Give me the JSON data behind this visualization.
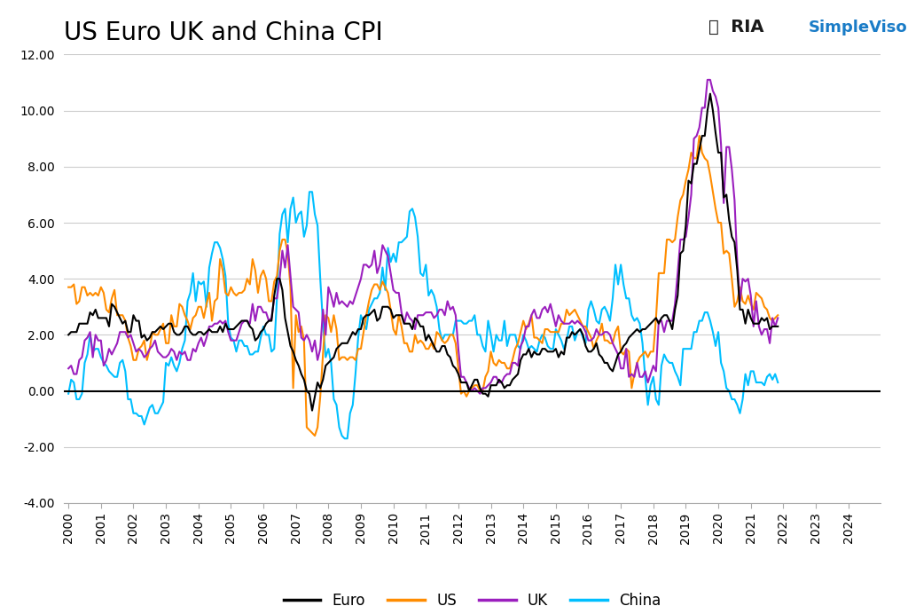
{
  "title": "US Euro UK and China CPI",
  "title_fontsize": 20,
  "colors": {
    "Euro": "#000000",
    "US": "#FF8C00",
    "UK": "#9B1FBE",
    "China": "#00BFFF"
  },
  "ylim": [
    -4.0,
    12.0
  ],
  "yticks": [
    -4.0,
    -2.0,
    0.0,
    2.0,
    4.0,
    6.0,
    8.0,
    10.0,
    12.0
  ],
  "background_color": "#ffffff",
  "grid_color": "#cccccc",
  "euro_monthly": [
    2.0,
    2.1,
    2.1,
    2.1,
    2.4,
    2.4,
    2.4,
    2.4,
    2.8,
    2.7,
    2.9,
    2.6,
    2.6,
    2.6,
    2.6,
    2.3,
    3.1,
    3.0,
    2.8,
    2.6,
    2.4,
    2.5,
    2.1,
    2.1,
    2.7,
    2.5,
    2.5,
    1.9,
    2.0,
    1.8,
    1.9,
    2.1,
    2.1,
    2.2,
    2.3,
    2.2,
    2.3,
    2.4,
    2.4,
    2.1,
    2.0,
    2.0,
    2.1,
    2.3,
    2.3,
    2.1,
    2.0,
    2.0,
    2.1,
    2.1,
    2.0,
    2.1,
    2.2,
    2.1,
    2.1,
    2.1,
    2.3,
    2.1,
    2.4,
    2.2,
    2.2,
    2.2,
    2.3,
    2.4,
    2.5,
    2.5,
    2.5,
    2.3,
    2.2,
    1.8,
    1.9,
    2.1,
    2.2,
    2.4,
    2.5,
    2.5,
    3.4,
    4.0,
    4.0,
    3.6,
    2.6,
    2.1,
    1.6,
    1.4,
    1.1,
    0.9,
    0.6,
    0.4,
    0.0,
    -0.1,
    -0.7,
    -0.2,
    0.3,
    0.1,
    0.4,
    0.9,
    1.0,
    1.1,
    1.2,
    1.5,
    1.6,
    1.7,
    1.7,
    1.7,
    1.9,
    2.1,
    2.0,
    2.2,
    2.2,
    2.6,
    2.7,
    2.7,
    2.8,
    2.9,
    2.5,
    2.6,
    3.0,
    3.0,
    3.0,
    2.9,
    2.6,
    2.7,
    2.7,
    2.7,
    2.4,
    2.4,
    2.4,
    2.2,
    2.6,
    2.5,
    2.3,
    2.3,
    1.8,
    2.0,
    1.8,
    1.6,
    1.4,
    1.4,
    1.6,
    1.6,
    1.3,
    1.2,
    0.9,
    0.8,
    0.6,
    0.3,
    0.3,
    0.3,
    0.0,
    0.2,
    0.4,
    0.4,
    0.1,
    -0.1,
    -0.1,
    -0.2,
    0.2,
    0.2,
    0.2,
    0.4,
    0.3,
    0.1,
    0.2,
    0.2,
    0.4,
    0.5,
    0.6,
    1.1,
    1.3,
    1.3,
    1.5,
    1.2,
    1.4,
    1.3,
    1.3,
    1.5,
    1.5,
    1.4,
    1.4,
    1.4,
    1.5,
    1.2,
    1.4,
    1.3,
    1.9,
    1.9,
    2.1,
    2.0,
    2.1,
    2.2,
    2.0,
    1.6,
    1.4,
    1.4,
    1.5,
    1.7,
    1.3,
    1.2,
    1.0,
    1.0,
    0.8,
    0.7,
    1.0,
    1.3,
    1.4,
    1.6,
    1.7,
    1.9,
    2.0,
    2.1,
    2.2,
    2.1,
    2.2,
    2.2,
    2.3,
    2.4,
    2.5,
    2.6,
    2.4,
    2.6,
    2.7,
    2.7,
    2.5,
    2.2,
    2.9,
    3.4,
    4.9,
    5.0,
    5.9,
    7.5,
    7.4,
    8.1,
    8.1,
    8.6,
    9.1,
    9.1,
    10.0,
    10.6,
    10.0,
    9.2,
    8.5,
    8.5,
    6.9,
    7.0,
    6.1,
    5.5,
    5.3,
    4.3,
    2.9,
    2.9,
    2.4,
    2.9,
    2.6,
    2.4,
    2.4,
    2.4,
    2.6,
    2.5,
    2.6,
    2.2,
    2.3,
    2.3,
    2.3
  ],
  "us_monthly": [
    3.7,
    3.7,
    3.8,
    3.1,
    3.2,
    3.7,
    3.7,
    3.4,
    3.5,
    3.4,
    3.5,
    3.4,
    3.7,
    3.5,
    2.9,
    2.8,
    3.3,
    3.6,
    2.7,
    2.7,
    2.7,
    2.5,
    1.9,
    1.6,
    1.1,
    1.1,
    1.5,
    1.6,
    1.8,
    1.1,
    1.5,
    2.1,
    2.0,
    2.0,
    2.2,
    2.4,
    1.7,
    1.7,
    2.7,
    2.3,
    2.3,
    3.1,
    3.0,
    2.7,
    2.5,
    2.2,
    2.6,
    2.7,
    3.0,
    3.0,
    2.6,
    3.1,
    3.5,
    2.5,
    3.2,
    3.3,
    4.7,
    4.3,
    3.5,
    3.4,
    3.7,
    3.5,
    3.4,
    3.5,
    3.5,
    3.6,
    4.0,
    3.8,
    4.7,
    4.3,
    3.5,
    4.1,
    4.3,
    4.0,
    3.2,
    3.2,
    3.9,
    4.1,
    5.0,
    5.4,
    5.4,
    4.9,
    3.7,
    0.1,
    2.7,
    2.1,
    2.3,
    1.8,
    -1.3,
    -1.4,
    -1.5,
    -1.6,
    -1.3,
    -0.2,
    1.3,
    2.7,
    2.6,
    2.1,
    2.7,
    2.2,
    1.1,
    1.2,
    1.2,
    1.1,
    1.2,
    1.2,
    1.1,
    1.5,
    1.5,
    2.1,
    2.7,
    3.2,
    3.6,
    3.8,
    3.8,
    3.6,
    3.9,
    3.7,
    3.5,
    2.9,
    2.2,
    2.0,
    2.7,
    2.3,
    1.7,
    1.7,
    1.4,
    1.4,
    2.0,
    1.7,
    1.8,
    1.7,
    1.5,
    1.5,
    1.7,
    1.5,
    2.1,
    2.0,
    1.8,
    1.7,
    1.8,
    2.0,
    2.0,
    1.7,
    0.8,
    -0.1,
    0.0,
    -0.2,
    0.0,
    0.1,
    0.2,
    0.2,
    -0.0,
    0.0,
    0.5,
    0.7,
    1.4,
    1.0,
    0.9,
    1.1,
    1.0,
    1.0,
    0.8,
    0.8,
    1.1,
    1.5,
    1.7,
    2.1,
    2.5,
    2.2,
    2.4,
    2.7,
    1.9,
    1.9,
    1.8,
    1.7,
    2.2,
    2.2,
    2.1,
    2.1,
    2.1,
    2.1,
    2.4,
    2.4,
    2.9,
    2.7,
    2.8,
    2.9,
    2.7,
    2.5,
    2.3,
    2.3,
    2.1,
    1.9,
    1.5,
    1.8,
    2.0,
    2.4,
    1.8,
    1.8,
    1.7,
    1.7,
    2.1,
    2.3,
    1.4,
    1.3,
    1.5,
    1.4,
    0.1,
    0.6,
    1.0,
    1.2,
    1.3,
    1.4,
    1.2,
    1.4,
    1.4,
    2.6,
    4.2,
    4.2,
    4.2,
    5.4,
    5.4,
    5.3,
    5.4,
    6.2,
    6.8,
    7.0,
    7.5,
    7.9,
    8.5,
    8.3,
    8.3,
    9.1,
    8.5,
    8.3,
    8.2,
    7.7,
    7.1,
    6.5,
    6.0,
    6.0,
    4.9,
    5.0,
    4.9,
    4.0,
    3.0,
    3.2,
    3.7,
    3.2,
    3.1,
    3.4,
    3.1,
    2.9,
    3.5,
    3.4,
    3.3,
    3.0,
    2.9,
    2.6,
    2.5,
    2.6,
    2.7
  ],
  "uk_monthly": [
    0.8,
    0.9,
    0.6,
    0.6,
    1.1,
    1.2,
    1.8,
    1.9,
    2.1,
    1.2,
    2.0,
    1.8,
    1.8,
    0.9,
    1.1,
    1.5,
    1.3,
    1.5,
    1.7,
    2.1,
    2.1,
    2.1,
    1.9,
    2.0,
    1.7,
    1.4,
    1.5,
    1.4,
    1.2,
    1.3,
    1.5,
    1.6,
    1.8,
    1.4,
    1.3,
    1.2,
    1.2,
    1.3,
    1.5,
    1.4,
    1.1,
    1.4,
    1.3,
    1.4,
    1.1,
    1.1,
    1.5,
    1.4,
    1.7,
    1.9,
    1.6,
    1.9,
    2.3,
    2.3,
    2.4,
    2.4,
    2.5,
    2.4,
    2.5,
    2.1,
    1.8,
    1.8,
    1.8,
    2.1,
    2.4,
    2.5,
    2.5,
    2.4,
    3.1,
    2.5,
    3.0,
    3.0,
    2.8,
    2.8,
    2.5,
    2.6,
    3.3,
    3.3,
    4.0,
    5.0,
    4.4,
    5.2,
    4.1,
    3.0,
    2.9,
    2.8,
    1.9,
    1.8,
    2.0,
    1.8,
    1.4,
    1.8,
    1.1,
    1.5,
    2.9,
    2.0,
    3.7,
    3.4,
    3.0,
    3.5,
    3.1,
    3.2,
    3.1,
    3.0,
    3.2,
    3.1,
    3.4,
    3.7,
    4.0,
    4.5,
    4.5,
    4.4,
    4.5,
    5.0,
    4.2,
    4.5,
    5.2,
    5.0,
    4.8,
    4.2,
    3.6,
    3.5,
    3.5,
    2.8,
    2.4,
    2.8,
    2.6,
    2.5,
    2.2,
    2.7,
    2.7,
    2.7,
    2.8,
    2.8,
    2.8,
    2.6,
    2.7,
    2.9,
    2.9,
    2.7,
    3.2,
    2.9,
    3.0,
    2.7,
    1.5,
    0.5,
    0.5,
    0.3,
    0.1,
    0.0,
    0.1,
    0.0,
    -0.1,
    0.1,
    0.1,
    0.2,
    0.3,
    0.5,
    0.5,
    0.3,
    0.3,
    0.5,
    0.6,
    0.6,
    1.0,
    1.0,
    0.9,
    1.6,
    1.8,
    2.3,
    2.3,
    2.7,
    2.9,
    2.6,
    2.6,
    2.9,
    3.0,
    2.8,
    3.1,
    2.7,
    2.3,
    2.7,
    2.5,
    2.4,
    2.4,
    2.4,
    2.5,
    2.4,
    2.5,
    2.4,
    2.3,
    2.1,
    1.8,
    1.8,
    1.9,
    2.2,
    2.0,
    2.0,
    2.1,
    2.1,
    2.0,
    1.7,
    1.5,
    1.3,
    0.8,
    0.8,
    1.5,
    0.5,
    0.6,
    0.5,
    1.0,
    0.5,
    0.5,
    0.7,
    0.3,
    0.6,
    0.9,
    0.7,
    2.5,
    2.5,
    2.1,
    2.5,
    2.5,
    2.5,
    3.1,
    4.2,
    5.4,
    5.4,
    5.5,
    6.2,
    7.0,
    9.0,
    9.1,
    9.4,
    10.1,
    10.1,
    11.1,
    11.1,
    10.7,
    10.5,
    10.1,
    8.8,
    6.7,
    8.7,
    8.7,
    7.9,
    6.8,
    4.6,
    3.2,
    4.0,
    3.9,
    4.0,
    3.4,
    2.3,
    3.2,
    2.3,
    2.0,
    2.2,
    2.2,
    1.7,
    2.6,
    2.3,
    2.6
  ],
  "china_monthly": [
    -0.1,
    0.4,
    0.3,
    -0.3,
    -0.3,
    -0.1,
    1.0,
    1.3,
    2.0,
    1.4,
    1.5,
    1.5,
    1.2,
    1.0,
    0.9,
    0.7,
    0.6,
    0.5,
    0.5,
    1.0,
    1.1,
    0.7,
    -0.3,
    -0.3,
    -0.8,
    -0.8,
    -0.9,
    -0.9,
    -1.2,
    -0.9,
    -0.6,
    -0.5,
    -0.8,
    -0.8,
    -0.6,
    -0.4,
    1.0,
    0.9,
    1.2,
    0.9,
    0.7,
    1.0,
    1.5,
    1.8,
    3.2,
    3.5,
    4.2,
    3.2,
    3.9,
    3.8,
    3.9,
    3.0,
    4.4,
    4.9,
    5.3,
    5.3,
    5.1,
    4.7,
    4.1,
    2.4,
    1.9,
    1.8,
    1.4,
    1.8,
    1.8,
    1.6,
    1.6,
    1.3,
    1.3,
    1.4,
    1.4,
    1.9,
    2.3,
    2.0,
    2.0,
    1.4,
    1.5,
    3.3,
    5.6,
    6.3,
    6.5,
    5.3,
    6.5,
    6.9,
    6.0,
    6.3,
    6.4,
    5.5,
    5.9,
    7.1,
    7.1,
    6.3,
    5.9,
    4.0,
    2.4,
    1.2,
    1.5,
    1.0,
    -0.3,
    -0.5,
    -1.3,
    -1.6,
    -1.7,
    -1.7,
    -0.8,
    -0.5,
    0.6,
    1.9,
    2.7,
    2.4,
    2.2,
    2.9,
    3.1,
    3.3,
    3.3,
    3.5,
    4.4,
    3.6,
    5.1,
    4.6,
    4.9,
    4.6,
    5.3,
    5.3,
    5.4,
    5.5,
    6.4,
    6.5,
    6.2,
    5.5,
    4.2,
    4.1,
    4.5,
    3.4,
    3.6,
    3.4,
    3.0,
    2.2,
    1.8,
    2.0,
    2.0,
    2.0,
    2.0,
    2.5,
    2.5,
    2.5,
    2.4,
    2.4,
    2.5,
    2.5,
    2.7,
    2.0,
    2.0,
    1.6,
    1.4,
    2.5,
    2.0,
    1.4,
    2.0,
    1.8,
    1.8,
    2.5,
    1.6,
    2.0,
    2.0,
    2.0,
    1.6,
    1.5,
    2.0,
    1.8,
    1.5,
    1.6,
    1.5,
    1.4,
    1.8,
    2.0,
    1.9,
    1.6,
    1.5,
    1.5,
    2.2,
    2.0,
    1.8,
    1.5,
    1.8,
    2.3,
    2.3,
    1.8,
    2.1,
    2.2,
    1.9,
    1.7,
    2.9,
    3.2,
    2.9,
    2.5,
    2.4,
    2.9,
    3.0,
    2.8,
    2.5,
    3.3,
    4.5,
    3.8,
    4.5,
    3.8,
    3.3,
    3.3,
    2.7,
    2.5,
    2.6,
    2.4,
    1.7,
    0.5,
    -0.5,
    0.2,
    0.5,
    -0.3,
    -0.5,
    0.9,
    1.3,
    1.1,
    1.0,
    1.0,
    0.7,
    0.5,
    0.2,
    1.5,
    1.5,
    1.5,
    1.5,
    2.1,
    2.1,
    2.5,
    2.5,
    2.8,
    2.8,
    2.5,
    2.1,
    1.6,
    2.1,
    1.0,
    0.7,
    0.1,
    0.0,
    -0.3,
    -0.3,
    -0.5,
    -0.8,
    -0.3,
    0.6,
    0.2,
    0.7,
    0.7,
    0.3,
    0.3,
    0.3,
    0.2,
    0.5,
    0.6,
    0.4,
    0.6,
    0.3
  ]
}
